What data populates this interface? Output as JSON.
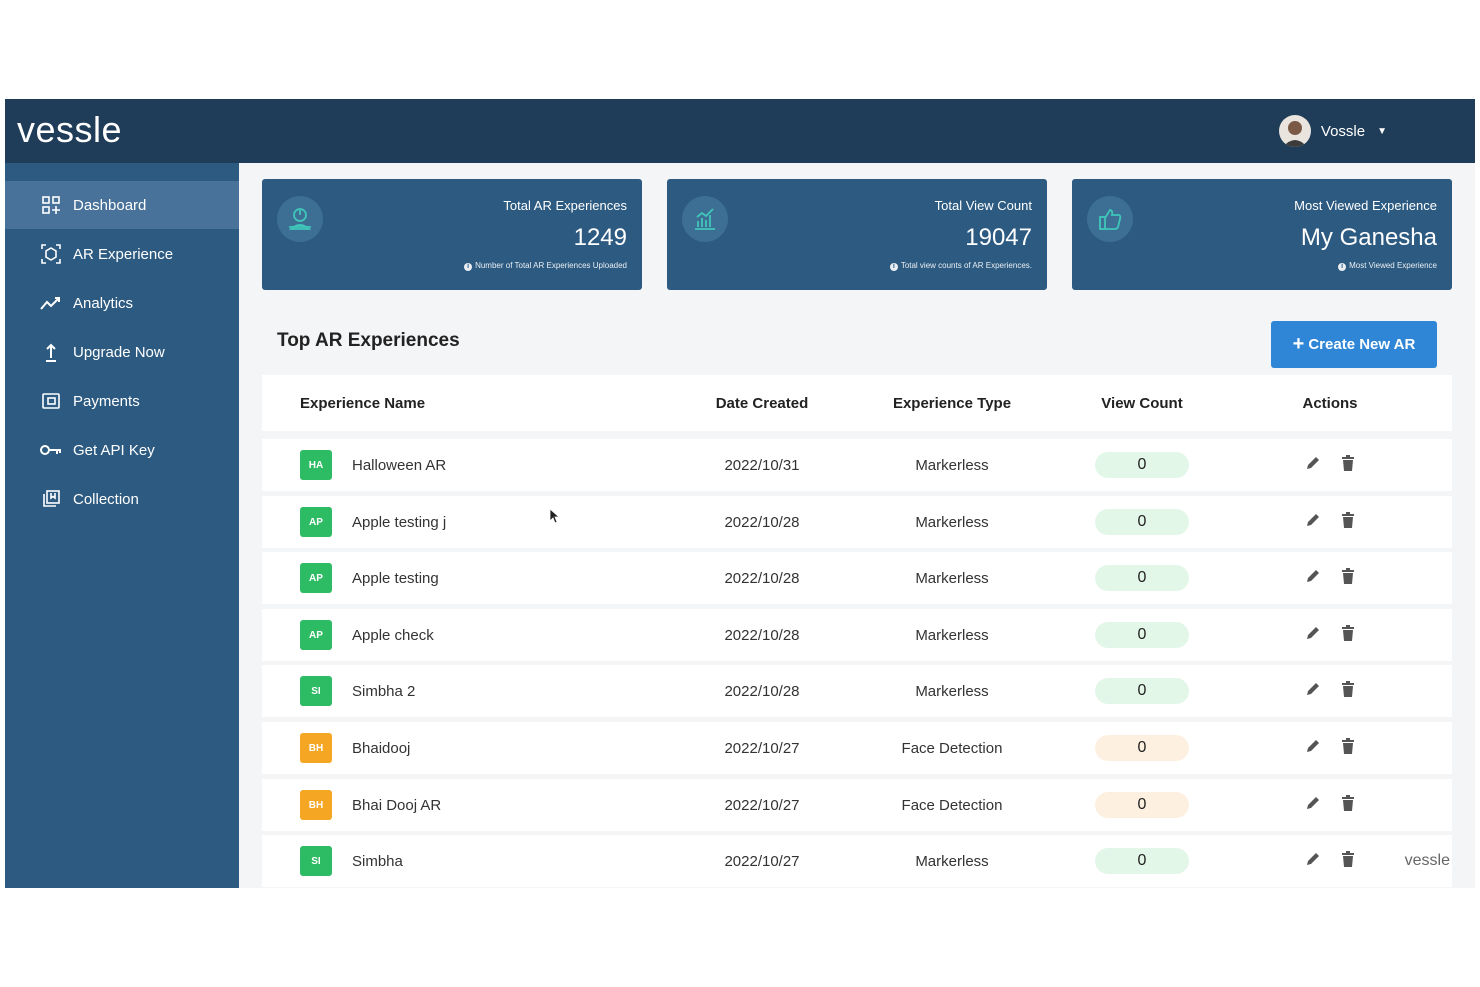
{
  "app": {
    "logo": "vessle"
  },
  "user": {
    "name": "Vossle"
  },
  "sidebar": {
    "items": [
      {
        "label": "Dashboard",
        "icon": "dashboard-icon",
        "active": true
      },
      {
        "label": "AR Experience",
        "icon": "ar-experience-icon"
      },
      {
        "label": "Analytics",
        "icon": "analytics-icon"
      },
      {
        "label": "Upgrade Now",
        "icon": "upgrade-icon"
      },
      {
        "label": "Payments",
        "icon": "payments-icon"
      },
      {
        "label": "Get API Key",
        "icon": "key-icon"
      },
      {
        "label": "Collection",
        "icon": "collection-icon"
      }
    ]
  },
  "cards": [
    {
      "label": "Total AR Experiences",
      "value": "1249",
      "note": "Number of Total AR Experiences Uploaded",
      "icon": "ar-user-icon"
    },
    {
      "label": "Total View Count",
      "value": "19047",
      "note": "Total view counts of AR Experiences.",
      "icon": "bar-chart-icon"
    },
    {
      "label": "Most Viewed Experience",
      "value": "My Ganesha",
      "note": "Most Viewed Experience",
      "icon": "thumbs-up-icon"
    }
  ],
  "section": {
    "title": "Top AR Experiences",
    "create_label": "Create New AR"
  },
  "table": {
    "headers": [
      "Experience Name",
      "Date Created",
      "Experience Type",
      "View Count",
      "Actions"
    ],
    "rows": [
      {
        "badge": "HA",
        "name": "Halloween AR",
        "date": "2022/10/31",
        "type": "Markerless",
        "views": "0",
        "badge_color": "#2dbb63",
        "pill_color": "#e3f7e9"
      },
      {
        "badge": "AP",
        "name": "Apple testing j",
        "date": "2022/10/28",
        "type": "Markerless",
        "views": "0",
        "badge_color": "#2dbb63",
        "pill_color": "#e3f7e9"
      },
      {
        "badge": "AP",
        "name": "Apple testing",
        "date": "2022/10/28",
        "type": "Markerless",
        "views": "0",
        "badge_color": "#2dbb63",
        "pill_color": "#e3f7e9"
      },
      {
        "badge": "AP",
        "name": "Apple check",
        "date": "2022/10/28",
        "type": "Markerless",
        "views": "0",
        "badge_color": "#2dbb63",
        "pill_color": "#e3f7e9"
      },
      {
        "badge": "SI",
        "name": "Simbha 2",
        "date": "2022/10/28",
        "type": "Markerless",
        "views": "0",
        "badge_color": "#2dbb63",
        "pill_color": "#e3f7e9"
      },
      {
        "badge": "BH",
        "name": "Bhaidooj",
        "date": "2022/10/27",
        "type": "Face Detection",
        "views": "0",
        "badge_color": "#f5a623",
        "pill_color": "#fdf0e0"
      },
      {
        "badge": "BH",
        "name": "Bhai Dooj AR",
        "date": "2022/10/27",
        "type": "Face Detection",
        "views": "0",
        "badge_color": "#f5a623",
        "pill_color": "#fdf0e0"
      },
      {
        "badge": "SI",
        "name": "Simbha",
        "date": "2022/10/27",
        "type": "Markerless",
        "views": "0",
        "badge_color": "#2dbb63",
        "pill_color": "#e3f7e9"
      }
    ]
  },
  "watermark": "vessle"
}
